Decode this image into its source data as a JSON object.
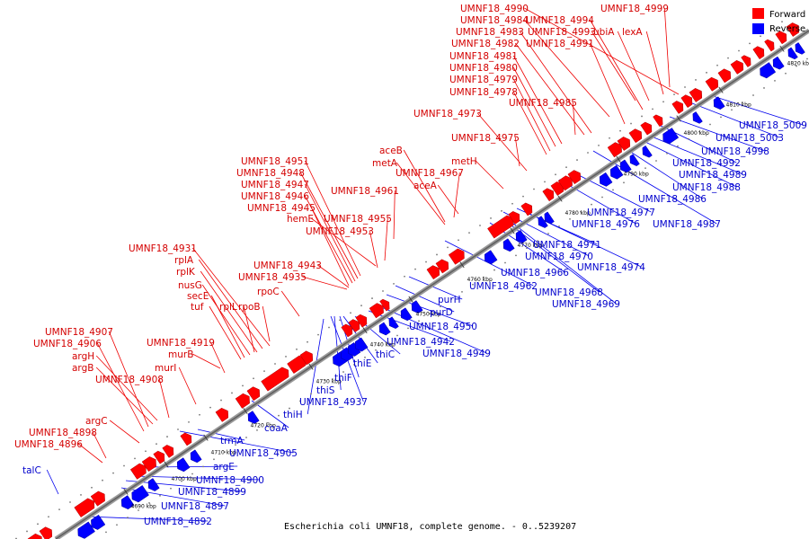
{
  "caption": "Escherichia coli UMNF18, complete genome. - 0..5239207",
  "legend": {
    "forward_label": "Forward",
    "reverse_label": "Reverse",
    "forward_color": "#ff0000",
    "reverse_color": "#0000ff"
  },
  "ticks": [
    "4690 kbp",
    "4700 kbp",
    "4710 kbp",
    "4720 kbp",
    "4730 kbp",
    "4740 kbp",
    "4750 kbp",
    "4760 kbp",
    "4770 kbp",
    "4780 kbp",
    "4790 kbp",
    "4800 kbp",
    "4810 kbp",
    "4820 kbp"
  ],
  "forward_labels": [
    "UMNF18_4990",
    "UMNF18_4999",
    "UMNF18_4984",
    "UMNF18_4994",
    "UMNF18_4983",
    "UMNF18_4993",
    "ubiA",
    "lexA",
    "UMNF18_4982",
    "UMNF18_4991",
    "UMNF18_4981",
    "UMNF18_4980",
    "UMNF18_4979",
    "UMNF18_4978",
    "UMNF18_4985",
    "UMNF18_4973",
    "UMNF18_4975",
    "aceB",
    "metA",
    "UMNF18_4967",
    "metH",
    "aceA",
    "UMNF18_4951",
    "UMNF18_4948",
    "UMNF18_4947",
    "UMNF18_4961",
    "UMNF18_4946",
    "UMNF18_4945",
    "hemE",
    "UMNF18_4955",
    "UMNF18_4953",
    "UMNF18_4931",
    "rplA",
    "rplK",
    "UMNF18_4943",
    "UMNF18_4935",
    "nusG",
    "secE",
    "rpoC",
    "tuf",
    "rplL",
    "rpoB",
    "UMNF18_4907",
    "UMNF18_4906",
    "UMNF18_4919",
    "argH",
    "murB",
    "argB",
    "murI",
    "UMNF18_4908",
    "argC",
    "UMNF18_4898",
    "UMNF18_4896"
  ],
  "reverse_labels": [
    "UMNF18_5009",
    "UMNF18_5003",
    "UMNF18_4998",
    "UMNF18_4992",
    "UMNF18_4989",
    "UMNF18_4988",
    "UMNF18_4986",
    "UMNF18_4977",
    "UMNF18_4976",
    "UMNF18_4987",
    "UMNF18_4971",
    "UMNF18_4970",
    "UMNF18_4974",
    "UMNF18_4966",
    "UMNF18_4962",
    "UMNF18_4968",
    "UMNF18_4969",
    "purH",
    "purD",
    "UMNF18_4950",
    "UMNF18_4942",
    "UMNF18_4949",
    "thiC",
    "thiE",
    "thiF",
    "thiS",
    "UMNF18_4937",
    "thiH",
    "coaA",
    "trmA",
    "UMNF18_4905",
    "argE",
    "talC",
    "UMNF18_4900",
    "UMNF18_4899",
    "UMNF18_4897",
    "UMNF18_4892"
  ]
}
